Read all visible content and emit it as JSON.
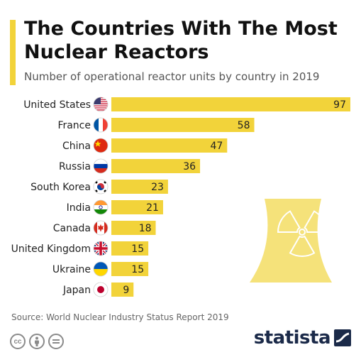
{
  "header": {
    "title": "The Countries With The Most Nuclear Reactors",
    "subtitle": "Number of operational reactor units by country in 2019"
  },
  "chart_data": {
    "type": "bar",
    "orientation": "horizontal",
    "title": "The Countries With The Most Nuclear Reactors",
    "subtitle": "Number of operational reactor units by country in 2019",
    "categories": [
      "United States",
      "France",
      "China",
      "Russia",
      "South Korea",
      "India",
      "Canada",
      "United Kingdom",
      "Ukraine",
      "Japan"
    ],
    "values": [
      97,
      58,
      47,
      36,
      23,
      21,
      18,
      15,
      15,
      9
    ],
    "xlim": [
      0,
      97
    ],
    "grid": false,
    "legend": "none",
    "bar_color": "#f2d33a",
    "flags": [
      "us-flag-icon",
      "france-flag-icon",
      "china-flag-icon",
      "russia-flag-icon",
      "south-korea-flag-icon",
      "india-flag-icon",
      "canada-flag-icon",
      "uk-flag-icon",
      "ukraine-flag-icon",
      "japan-flag-icon"
    ]
  },
  "footer": {
    "source": "Source: World Nuclear Industry Status Report 2019",
    "license_icons": [
      "creative-commons-icon",
      "attribution-icon",
      "no-derivatives-icon"
    ],
    "brand": "statista"
  },
  "colors": {
    "accent": "#f2d33a",
    "brand": "#1b2a49",
    "tower": "#f5e27a"
  }
}
